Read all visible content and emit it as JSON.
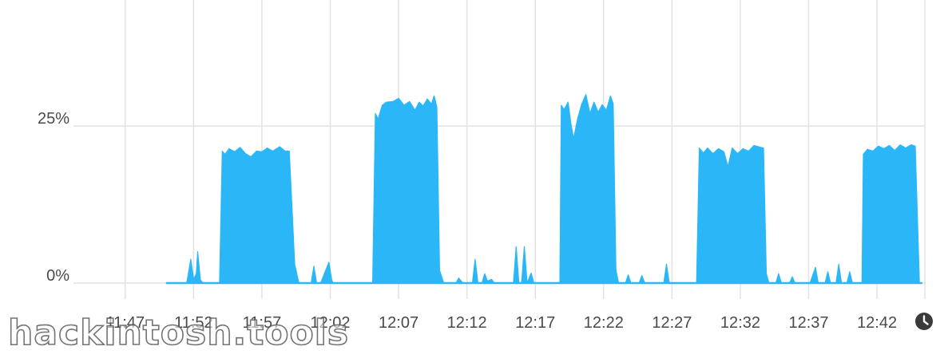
{
  "chart_data": {
    "type": "area",
    "color": "#2bb7f7",
    "grid": true,
    "ylim": [
      0,
      50
    ],
    "y_ticks": [
      {
        "value": 0,
        "label": "0%"
      },
      {
        "value": 25,
        "label": "25%"
      }
    ],
    "x_ticks": [
      "11:47",
      "11:52",
      "11:57",
      "12:02",
      "12:07",
      "12:12",
      "12:17",
      "12:22",
      "12:27",
      "12:32",
      "12:37",
      "12:42"
    ],
    "xlim_minutes": [
      -2.15,
      58.5
    ],
    "series": [
      {
        "values": [
          [
            3.0,
            0
          ],
          [
            3.7,
            0
          ],
          [
            4.5,
            0
          ],
          [
            4.8,
            3.8
          ],
          [
            5.0,
            0.6
          ],
          [
            5.2,
            1.5
          ],
          [
            5.3,
            5.0
          ],
          [
            5.5,
            0.5
          ],
          [
            5.7,
            0
          ],
          [
            6.9,
            0
          ],
          [
            7.1,
            21.0
          ],
          [
            7.3,
            20.5
          ],
          [
            7.6,
            21.4
          ],
          [
            8.0,
            20.9
          ],
          [
            8.4,
            21.6
          ],
          [
            8.8,
            20.6
          ],
          [
            9.2,
            20.1
          ],
          [
            9.6,
            21.0
          ],
          [
            10.0,
            20.9
          ],
          [
            10.4,
            21.5
          ],
          [
            10.8,
            21.0
          ],
          [
            11.3,
            21.7
          ],
          [
            11.7,
            21.0
          ],
          [
            12.0,
            21.0
          ],
          [
            12.4,
            3.0
          ],
          [
            12.7,
            0
          ],
          [
            13.3,
            0
          ],
          [
            13.6,
            0
          ],
          [
            13.8,
            2.7
          ],
          [
            14.0,
            0
          ],
          [
            14.3,
            0
          ],
          [
            14.9,
            3.3
          ],
          [
            15.1,
            0.6
          ],
          [
            15.2,
            0
          ],
          [
            18.1,
            0
          ],
          [
            18.3,
            27.0
          ],
          [
            18.5,
            26.1
          ],
          [
            18.8,
            28.3
          ],
          [
            19.1,
            28.8
          ],
          [
            19.6,
            28.9
          ],
          [
            20.0,
            29.4
          ],
          [
            20.4,
            28.3
          ],
          [
            20.8,
            28.9
          ],
          [
            21.2,
            27.5
          ],
          [
            21.5,
            28.8
          ],
          [
            21.8,
            28.2
          ],
          [
            22.1,
            29.3
          ],
          [
            22.4,
            28.5
          ],
          [
            22.6,
            29.8
          ],
          [
            22.8,
            28.0
          ],
          [
            23.0,
            2.0
          ],
          [
            23.3,
            0
          ],
          [
            24.2,
            0
          ],
          [
            24.4,
            0.8
          ],
          [
            24.7,
            0
          ],
          [
            25.4,
            0
          ],
          [
            25.6,
            3.8
          ],
          [
            25.8,
            0
          ],
          [
            26.1,
            0
          ],
          [
            26.3,
            1.5
          ],
          [
            26.5,
            0.3
          ],
          [
            26.8,
            0.6
          ],
          [
            27.0,
            0
          ],
          [
            27.2,
            0
          ],
          [
            28.4,
            0
          ],
          [
            28.6,
            5.8
          ],
          [
            28.8,
            0
          ],
          [
            29.0,
            0
          ],
          [
            29.2,
            5.8
          ],
          [
            29.4,
            0
          ],
          [
            29.7,
            1.6
          ],
          [
            29.9,
            0
          ],
          [
            31.8,
            0
          ],
          [
            31.9,
            28.3
          ],
          [
            32.1,
            27.6
          ],
          [
            32.4,
            28.8
          ],
          [
            32.6,
            25.5
          ],
          [
            32.8,
            23.0
          ],
          [
            33.1,
            26.2
          ],
          [
            33.4,
            28.5
          ],
          [
            33.7,
            30.0
          ],
          [
            34.0,
            27.0
          ],
          [
            34.3,
            28.8
          ],
          [
            34.6,
            27.2
          ],
          [
            34.9,
            28.4
          ],
          [
            35.2,
            27.5
          ],
          [
            35.5,
            29.8
          ],
          [
            35.7,
            28.5
          ],
          [
            35.9,
            2.0
          ],
          [
            36.1,
            0
          ],
          [
            36.6,
            0
          ],
          [
            36.8,
            1.3
          ],
          [
            37.0,
            0
          ],
          [
            37.6,
            0
          ],
          [
            37.8,
            1.2
          ],
          [
            38.0,
            0
          ],
          [
            38.4,
            0
          ],
          [
            39.4,
            0
          ],
          [
            39.6,
            3.0
          ],
          [
            39.8,
            0
          ],
          [
            41.8,
            0
          ],
          [
            42.0,
            21.5
          ],
          [
            42.3,
            20.7
          ],
          [
            42.6,
            21.5
          ],
          [
            43.0,
            20.6
          ],
          [
            43.4,
            21.4
          ],
          [
            43.8,
            20.9
          ],
          [
            44.1,
            18.5
          ],
          [
            44.4,
            21.5
          ],
          [
            44.8,
            20.6
          ],
          [
            45.2,
            21.4
          ],
          [
            45.6,
            21.0
          ],
          [
            46.0,
            21.9
          ],
          [
            46.5,
            21.6
          ],
          [
            46.7,
            21.5
          ],
          [
            46.9,
            1.5
          ],
          [
            47.1,
            0
          ],
          [
            47.6,
            0
          ],
          [
            47.8,
            1.5
          ],
          [
            48.0,
            0
          ],
          [
            48.6,
            0
          ],
          [
            48.8,
            1.0
          ],
          [
            49.0,
            0
          ],
          [
            49.9,
            0
          ],
          [
            50.1,
            0
          ],
          [
            50.5,
            2.5
          ],
          [
            50.7,
            0
          ],
          [
            51.2,
            0
          ],
          [
            51.4,
            1.8
          ],
          [
            51.6,
            0
          ],
          [
            52.0,
            0
          ],
          [
            52.2,
            3.0
          ],
          [
            52.4,
            0
          ],
          [
            52.8,
            0
          ],
          [
            53.0,
            1.8
          ],
          [
            53.2,
            0
          ],
          [
            53.9,
            0
          ],
          [
            54.0,
            20.5
          ],
          [
            54.3,
            21.3
          ],
          [
            54.7,
            21.0
          ],
          [
            55.1,
            21.8
          ],
          [
            55.5,
            21.4
          ],
          [
            55.9,
            21.9
          ],
          [
            56.3,
            21.1
          ],
          [
            56.7,
            22.0
          ],
          [
            57.1,
            21.5
          ],
          [
            57.5,
            22.0
          ],
          [
            57.8,
            21.8
          ],
          [
            58.1,
            0
          ],
          [
            58.3,
            0
          ]
        ]
      }
    ]
  }
}
